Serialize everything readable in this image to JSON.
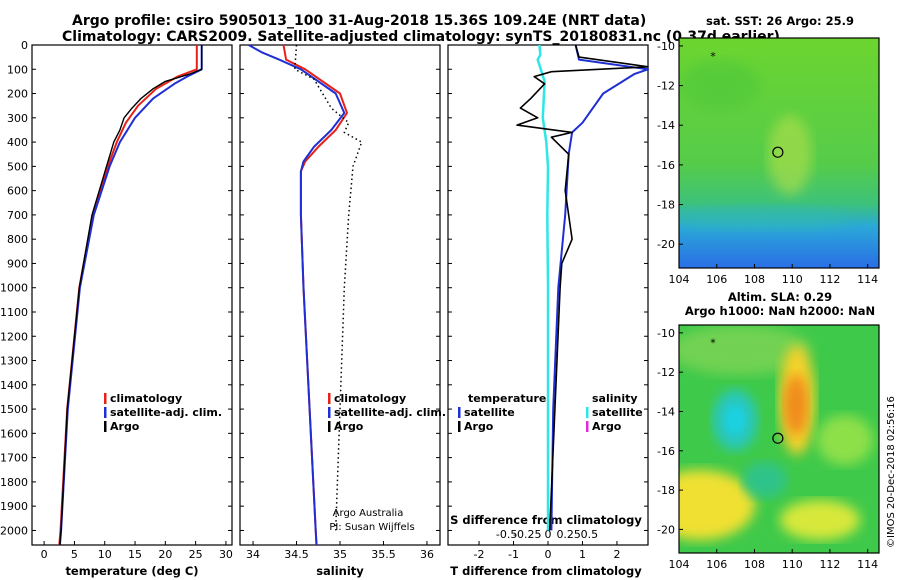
{
  "header": {
    "line1": "Argo profile: csiro 5905013_100 31-Aug-2018 15.36S 109.24E (NRT data)",
    "line2": "Climatology: CARS2009. Satellite-adjusted climatology: synTS_20180831.nc (0.37d earlier)"
  },
  "colors": {
    "climatology": "#e8201a",
    "satellite": "#1f2fd4",
    "argo": "#000000",
    "sal_sat": "#2ee6e6",
    "sal_argo": "#e02bd6"
  },
  "chart_data": [
    {
      "type": "line",
      "name": "temperature-panel",
      "xlabel": "temperature (deg C)",
      "xlim": [
        -2,
        31
      ],
      "ylim": [
        2060,
        0
      ],
      "xticks": [
        "0",
        "5",
        "10",
        "15",
        "20",
        "25",
        "30"
      ],
      "yticks": [
        "0",
        "100",
        "200",
        "300",
        "400",
        "500",
        "600",
        "700",
        "800",
        "900",
        "1000",
        "1100",
        "1200",
        "1300",
        "1400",
        "1500",
        "1600",
        "1700",
        "1800",
        "1900",
        "2000"
      ],
      "legend": [
        "climatology",
        "satellite-adj. clim.",
        "Argo"
      ],
      "series": [
        {
          "name": "climatology",
          "depth": [
            0,
            100,
            130,
            180,
            250,
            320,
            400,
            500,
            700,
            1000,
            1500,
            2000,
            2060
          ],
          "values": [
            25.2,
            25.2,
            22,
            18.5,
            15.5,
            13.5,
            12,
            10.5,
            8,
            5.8,
            3.8,
            2.7,
            2.5
          ]
        },
        {
          "name": "satellite-adj. clim.",
          "depth": [
            0,
            100,
            125,
            160,
            220,
            300,
            400,
            500,
            700,
            1000,
            1500,
            2000,
            2060
          ],
          "values": [
            26,
            26,
            24,
            21.5,
            18,
            15,
            12.5,
            10.8,
            8.2,
            5.9,
            3.9,
            2.8,
            2.6
          ]
        },
        {
          "name": "Argo",
          "depth": [
            0,
            100,
            120,
            150,
            180,
            220,
            260,
            300,
            350,
            400,
            500,
            700,
            1000,
            1500,
            2000,
            2060
          ],
          "values": [
            26,
            26,
            24,
            20,
            18,
            16,
            14.5,
            13.2,
            12.5,
            11.5,
            10.3,
            7.9,
            5.8,
            3.8,
            2.8,
            2.6
          ]
        }
      ]
    },
    {
      "type": "line",
      "name": "salinity-panel",
      "xlabel": "salinity",
      "xlim": [
        33.85,
        36.15
      ],
      "ylim": [
        2060,
        0
      ],
      "xticks": [
        "34",
        "34.5",
        "35",
        "35.5",
        "36"
      ],
      "legend": [
        "climatology",
        "satellite-adj. clim.",
        "Argo"
      ],
      "credit": [
        "Argo Australia",
        "PI: Susan Wijffels"
      ],
      "series": [
        {
          "name": "climatology",
          "depth": [
            0,
            60,
            100,
            200,
            280,
            350,
            420,
            480,
            520,
            700,
            1000,
            1500,
            2000,
            2060
          ],
          "values": [
            34.35,
            34.38,
            34.6,
            35.0,
            35.08,
            34.95,
            34.75,
            34.6,
            34.55,
            34.55,
            34.58,
            34.65,
            34.72,
            34.73
          ]
        },
        {
          "name": "satellite-adj. clim.",
          "depth": [
            0,
            30,
            60,
            100,
            200,
            280,
            350,
            420,
            480,
            520,
            700,
            1000,
            1500,
            2000,
            2060
          ],
          "values": [
            33.95,
            34.1,
            34.3,
            34.55,
            34.95,
            35.05,
            34.9,
            34.7,
            34.58,
            34.55,
            34.55,
            34.58,
            34.65,
            34.72,
            34.73
          ]
        },
        {
          "name": "Argo",
          "depth": [
            0,
            100,
            140,
            200,
            260,
            320,
            360,
            400,
            500,
            700,
            1000,
            1500,
            2000
          ],
          "values": [
            34.5,
            34.48,
            34.7,
            34.8,
            34.9,
            35.1,
            35.05,
            35.25,
            35.15,
            35.1,
            35.05,
            35.0,
            34.95
          ]
        }
      ]
    },
    {
      "type": "line",
      "name": "difference-panel",
      "xlabel": "T difference from climatology",
      "xlabel2": "S difference from climatology",
      "xlim": [
        -2.9,
        2.9
      ],
      "ylim": [
        2060,
        0
      ],
      "xticks": [
        "-2",
        "-1",
        "0",
        "1",
        "2"
      ],
      "xticks_s": [
        "-0.5",
        "-0.25",
        "0",
        "0.25",
        "0.5"
      ],
      "legend_t_title": "temperature",
      "legend_s_title": "salinity",
      "legend_t": [
        "satellite",
        "Argo"
      ],
      "legend_s": [
        "satellite",
        "Argo"
      ],
      "series": [
        {
          "name": "T satellite",
          "depth": [
            0,
            60,
            100,
            120,
            200,
            320,
            360,
            450,
            700,
            1000,
            1500,
            2000
          ],
          "values": [
            0.8,
            0.9,
            2.9,
            2.5,
            1.6,
            1.0,
            0.7,
            0.6,
            0.5,
            0.3,
            0.15,
            0.1
          ]
        },
        {
          "name": "T Argo",
          "depth": [
            0,
            50,
            90,
            110,
            130,
            160,
            220,
            260,
            300,
            330,
            360,
            380,
            450,
            600,
            800,
            900,
            1000,
            1500,
            2000
          ],
          "values": [
            0.8,
            0.9,
            2.9,
            0.1,
            -0.4,
            -0.1,
            -0.5,
            -0.8,
            -0.3,
            -0.9,
            0.7,
            0.1,
            0.6,
            0.5,
            0.7,
            0.4,
            0.35,
            0.2,
            0.05
          ]
        },
        {
          "name": "S satellite",
          "depth": [
            0,
            40,
            60,
            150,
            300,
            400,
            500,
            700,
            1000,
            1500,
            2000
          ],
          "values": [
            -0.25,
            -0.22,
            -0.3,
            -0.1,
            -0.15,
            -0.05,
            0.0,
            -0.02,
            0.0,
            0.0,
            0.0
          ]
        }
      ]
    },
    {
      "type": "heatmap",
      "name": "sst-map",
      "title": "sat. SST: 26 Argo: 25.9",
      "xlim": [
        104,
        114.6
      ],
      "ylim": [
        -21.2,
        -9.6
      ],
      "xticks": [
        "104",
        "106",
        "108",
        "110",
        "112",
        "114"
      ],
      "yticks": [
        "-10",
        "-12",
        "-14",
        "-16",
        "-18",
        "-20"
      ],
      "argo_position": [
        109.24,
        -15.36
      ],
      "star": [
        105.8,
        -10.5
      ]
    },
    {
      "type": "heatmap",
      "name": "sla-map",
      "title": "Altim. SLA: 0.29",
      "subtitle": "Argo h1000: NaN h2000: NaN",
      "xlim": [
        104,
        114.6
      ],
      "ylim": [
        -21.2,
        -9.6
      ],
      "xticks": [
        "104",
        "106",
        "108",
        "110",
        "112",
        "114"
      ],
      "yticks": [
        "-10",
        "-12",
        "-14",
        "-16",
        "-18",
        "-20"
      ],
      "argo_position": [
        109.24,
        -15.36
      ],
      "star": [
        105.8,
        -10.5
      ]
    }
  ],
  "footer": {
    "copyright": "©IMOS 20-Dec-2018 02:56:16"
  }
}
